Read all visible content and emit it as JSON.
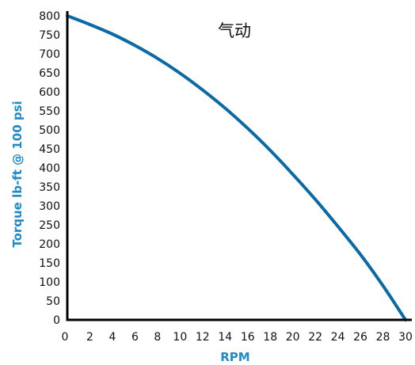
{
  "chart_data": {
    "type": "line",
    "title": "气动",
    "xlabel": "RPM",
    "ylabel": "Torque lb-ft @ 100 psi",
    "xlim": [
      0,
      30
    ],
    "ylim": [
      0,
      800
    ],
    "x_ticks": [
      "0",
      "2",
      "4",
      "6",
      "8",
      "10",
      "12",
      "14",
      "16",
      "18",
      "20",
      "22",
      "24",
      "26",
      "28",
      "30"
    ],
    "y_ticks": [
      "0",
      "50",
      "100",
      "150",
      "200",
      "250",
      "300",
      "350",
      "400",
      "450",
      "500",
      "550",
      "600",
      "650",
      "700",
      "750",
      "800"
    ],
    "grid": false,
    "series": [
      {
        "x": [
          0,
          2,
          4,
          6,
          8,
          10,
          12,
          14,
          16,
          18,
          20,
          22,
          24,
          26,
          28,
          30
        ],
        "y": [
          800,
          777,
          752,
          722,
          688,
          649,
          605,
          557,
          504,
          446,
          383,
          317,
          246,
          172,
          90,
          0
        ]
      }
    ],
    "colors": {
      "curve": "#0a6aa6",
      "axis_title": "#1f8ac5",
      "axis": "#000000"
    }
  }
}
